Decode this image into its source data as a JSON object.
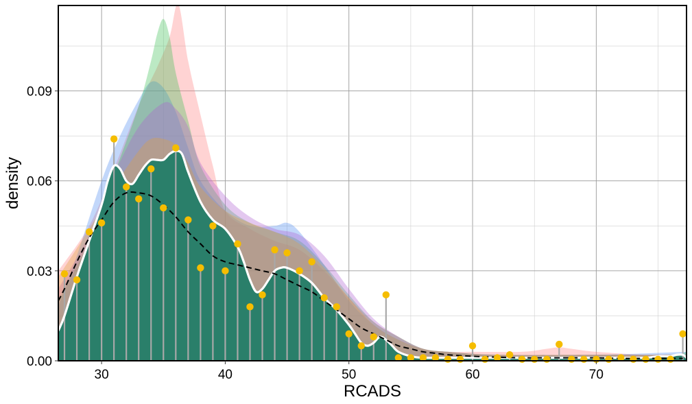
{
  "chart_data": {
    "type": "area",
    "title": "",
    "xlabel": "RCADS",
    "ylabel": "density",
    "xlim": [
      26.5,
      77.3
    ],
    "ylim": [
      0,
      0.1185
    ],
    "x_ticks": [
      30,
      40,
      50,
      60,
      70
    ],
    "x_tick_labels": [
      "30",
      "40",
      "50",
      "60",
      "70"
    ],
    "y_ticks": [
      0,
      0.03,
      0.06,
      0.09
    ],
    "y_tick_labels": [
      "0.00",
      "0.03",
      "0.06",
      "0.09"
    ],
    "grid": true,
    "legend": "none",
    "colors": {
      "fill": "#2a7f6a",
      "smooth_line": "#ffffff",
      "reference_line": "#000000",
      "points": "#f5bd00",
      "stems": "#a8a8a8",
      "bands": [
        "#ff8080",
        "#4f8df2",
        "#3fbf56",
        "#b060d0",
        "#e0a040"
      ]
    },
    "observed_density": {
      "x": [
        27,
        28,
        29,
        30,
        31,
        32,
        33,
        34,
        35,
        36,
        37,
        38,
        39,
        40,
        41,
        42,
        43,
        44,
        45,
        46,
        47,
        48,
        49,
        50,
        51,
        52,
        53,
        54,
        55,
        56,
        57,
        58,
        59,
        60,
        61,
        62,
        63,
        64,
        65,
        66,
        67,
        68,
        69,
        70,
        71,
        72,
        73,
        74,
        75,
        76,
        77
      ],
      "y": [
        0.029,
        0.027,
        0.043,
        0.046,
        0.074,
        0.058,
        0.054,
        0.064,
        0.051,
        0.071,
        0.047,
        0.031,
        0.045,
        0.03,
        0.039,
        0.018,
        0.022,
        0.037,
        0.036,
        0.03,
        0.033,
        0.021,
        0.018,
        0.009,
        0.005,
        0.008,
        0.022,
        0.001,
        0.001,
        0.001,
        0.001,
        0.0005,
        0.0005,
        0.005,
        0.0005,
        0.001,
        0.002,
        0.0005,
        0.0005,
        0.0005,
        0.0055,
        0.0005,
        0.0005,
        0.0005,
        0.0005,
        0.001,
        0.0005,
        0.0005,
        0.0005,
        0.0005,
        0.009
      ]
    },
    "smoothed_density": {
      "x": [
        26.5,
        27,
        28,
        29,
        30,
        30.5,
        31,
        31.5,
        32,
        32.5,
        33,
        33.5,
        34,
        34.5,
        35,
        35.5,
        36,
        36.5,
        37,
        38,
        39,
        40,
        41,
        41.5,
        42,
        42.5,
        43,
        43.5,
        44,
        44.5,
        45,
        46,
        47,
        48,
        49,
        50,
        50.5,
        51,
        51.5,
        52,
        52.5,
        53,
        53.5,
        54,
        55,
        56,
        58,
        60,
        62,
        64,
        66,
        68,
        70,
        72,
        74,
        75,
        76,
        76.5,
        77,
        77.3
      ],
      "y": [
        0.01,
        0.015,
        0.028,
        0.04,
        0.052,
        0.06,
        0.065,
        0.064,
        0.06,
        0.059,
        0.062,
        0.065,
        0.067,
        0.067,
        0.067,
        0.069,
        0.07,
        0.069,
        0.063,
        0.053,
        0.047,
        0.044,
        0.038,
        0.033,
        0.027,
        0.023,
        0.024,
        0.027,
        0.03,
        0.031,
        0.031,
        0.029,
        0.026,
        0.021,
        0.017,
        0.012,
        0.009,
        0.006,
        0.005,
        0.006,
        0.008,
        0.007,
        0.005,
        0.003,
        0.0015,
        0.001,
        0.001,
        0.001,
        0.001,
        0.001,
        0.001,
        0.001,
        0.001,
        0.001,
        0.001,
        0.0015,
        0.0015,
        0.002,
        0.002,
        0.001
      ]
    },
    "reference_density": {
      "x": [
        26.5,
        27,
        28,
        29,
        30,
        31,
        32,
        33,
        34,
        35,
        36,
        37,
        38,
        39,
        40,
        41,
        42,
        43,
        44,
        45,
        46,
        47,
        48,
        49,
        50,
        51,
        52,
        53,
        54,
        55,
        56,
        57,
        58,
        60,
        62,
        64,
        66,
        68,
        70,
        72,
        74,
        76,
        77
      ],
      "y": [
        0.02,
        0.024,
        0.033,
        0.041,
        0.047,
        0.053,
        0.056,
        0.056,
        0.055,
        0.052,
        0.048,
        0.043,
        0.039,
        0.035,
        0.033,
        0.032,
        0.031,
        0.03,
        0.029,
        0.027,
        0.025,
        0.023,
        0.02,
        0.017,
        0.014,
        0.011,
        0.009,
        0.007,
        0.005,
        0.004,
        0.003,
        0.0025,
        0.002,
        0.0015,
        0.0012,
        0.001,
        0.001,
        0.001,
        0.001,
        0.0008,
        0.0008,
        0.0008,
        0.0008
      ]
    },
    "resampled_densities": [
      {
        "x": [
          26.5,
          29,
          31,
          33,
          34.5,
          35.5,
          36.2,
          37,
          38,
          39,
          40,
          42,
          44,
          46,
          48,
          50,
          52,
          54,
          56,
          58,
          60,
          64,
          66,
          67,
          68,
          70,
          74,
          77.3
        ],
        "y": [
          0.03,
          0.045,
          0.064,
          0.085,
          0.098,
          0.108,
          0.119,
          0.1,
          0.082,
          0.065,
          0.05,
          0.044,
          0.04,
          0.037,
          0.03,
          0.021,
          0.013,
          0.008,
          0.004,
          0.003,
          0.003,
          0.003,
          0.004,
          0.0045,
          0.004,
          0.003,
          0.002,
          0.002
        ]
      },
      {
        "x": [
          26.5,
          28,
          30,
          31.5,
          33,
          34,
          35,
          36,
          37,
          38,
          40,
          42,
          44,
          45,
          46,
          48,
          50,
          52,
          54,
          56,
          58,
          62,
          70,
          77.3
        ],
        "y": [
          0.018,
          0.035,
          0.06,
          0.075,
          0.087,
          0.093,
          0.091,
          0.083,
          0.071,
          0.06,
          0.05,
          0.045,
          0.045,
          0.046,
          0.043,
          0.032,
          0.02,
          0.012,
          0.007,
          0.004,
          0.003,
          0.002,
          0.002,
          0.003
        ]
      },
      {
        "x": [
          26.5,
          29,
          31,
          33,
          34,
          34.5,
          35,
          35.5,
          36,
          37,
          38,
          40,
          42,
          44,
          46,
          48,
          50,
          52,
          54,
          56,
          58,
          62,
          70,
          76,
          77.3
        ],
        "y": [
          0.02,
          0.04,
          0.062,
          0.085,
          0.1,
          0.109,
          0.114,
          0.108,
          0.096,
          0.08,
          0.065,
          0.052,
          0.046,
          0.043,
          0.04,
          0.032,
          0.022,
          0.013,
          0.008,
          0.004,
          0.003,
          0.002,
          0.002,
          0.002,
          0.003
        ]
      },
      {
        "x": [
          26.5,
          29,
          31,
          33,
          35,
          36,
          37,
          38,
          40,
          42,
          44,
          46,
          48,
          50,
          52,
          54,
          56,
          58,
          62,
          70,
          77.3
        ],
        "y": [
          0.024,
          0.042,
          0.062,
          0.078,
          0.086,
          0.084,
          0.078,
          0.066,
          0.055,
          0.048,
          0.044,
          0.042,
          0.035,
          0.024,
          0.014,
          0.008,
          0.004,
          0.003,
          0.002,
          0.002,
          0.002
        ]
      },
      {
        "x": [
          26.5,
          29,
          31,
          33,
          34,
          35,
          36,
          37,
          38,
          40,
          42,
          44,
          46,
          48,
          50,
          52,
          54,
          56,
          58,
          62,
          70,
          77.3
        ],
        "y": [
          0.028,
          0.044,
          0.058,
          0.07,
          0.074,
          0.074,
          0.072,
          0.066,
          0.058,
          0.05,
          0.046,
          0.043,
          0.039,
          0.031,
          0.021,
          0.012,
          0.007,
          0.004,
          0.003,
          0.002,
          0.002,
          0.002
        ]
      }
    ]
  }
}
